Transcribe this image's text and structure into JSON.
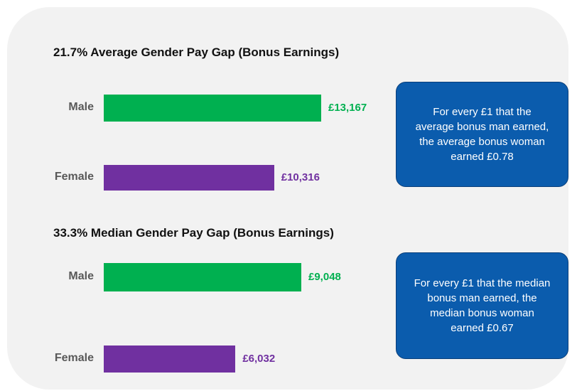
{
  "chart_data": [
    {
      "type": "bar",
      "orientation": "horizontal",
      "title": "21.7% Average Gender Pay Gap (Bonus Earnings)",
      "categories": [
        "Male",
        "Female"
      ],
      "values": [
        13167,
        10316
      ],
      "value_labels": [
        "£13,167",
        "£10,316"
      ],
      "colors": [
        "#00b050",
        "#7030a0"
      ],
      "callout": "For every £1 that the average bonus man earned, the average bonus woman earned £0.78"
    },
    {
      "type": "bar",
      "orientation": "horizontal",
      "title": "33.3% Median Gender Pay Gap (Bonus Earnings)",
      "categories": [
        "Male",
        "Female"
      ],
      "values": [
        9048,
        6032
      ],
      "value_labels": [
        "£9,048",
        "£6,032"
      ],
      "colors": [
        "#00b050",
        "#7030a0"
      ],
      "callout": "For every £1 that the median bonus man earned, the median bonus woman earned £0.67"
    }
  ]
}
